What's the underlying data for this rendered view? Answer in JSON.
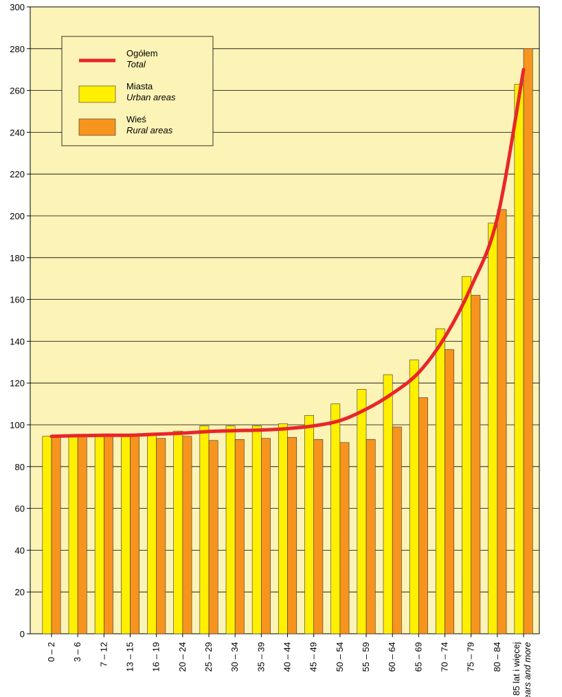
{
  "chart_data": {
    "type": "bar_line",
    "categories": [
      "0 – 2",
      "3 – 6",
      "7 – 12",
      "13 – 15",
      "16 – 19",
      "20 – 24",
      "25 – 29",
      "30 – 34",
      "35 – 39",
      "40 – 44",
      "45 – 49",
      "50 – 54",
      "55 – 59",
      "60 – 64",
      "65 – 69",
      "70 – 74",
      "75 – 79",
      "80 – 84",
      "85 lat i więcej"
    ],
    "last_category_en": "years and more",
    "series": [
      {
        "name": "Miasta",
        "name_en": "Urban areas",
        "kind": "bar",
        "color": "#ffef00",
        "values": [
          94.5,
          94.5,
          95,
          95,
          96,
          97,
          99.5,
          99.5,
          99.5,
          100.5,
          104.5,
          110,
          117,
          124,
          131,
          146,
          171,
          196.5,
          263
        ]
      },
      {
        "name": "Wieś",
        "name_en": "Rural areas",
        "kind": "bar",
        "color": "#f7941d",
        "values": [
          94,
          94.5,
          95,
          95,
          93.5,
          94.5,
          92.5,
          93,
          93.5,
          94,
          93,
          91.5,
          93,
          99,
          113,
          136,
          162,
          203,
          280
        ]
      },
      {
        "name": "Ogółem",
        "name_en": "Total",
        "kind": "line",
        "color": "#e8262a",
        "values": [
          94.5,
          94.8,
          95,
          95,
          95.5,
          96,
          96.8,
          97.2,
          97.5,
          98.2,
          99.5,
          102,
          107.5,
          115,
          125,
          142,
          166,
          199,
          270
        ]
      }
    ],
    "ylim": [
      0,
      300
    ],
    "yticks": [
      0,
      20,
      40,
      60,
      80,
      100,
      120,
      140,
      160,
      180,
      200,
      220,
      240,
      260,
      280,
      300
    ],
    "grid": true,
    "legend": "upper left",
    "background": "#fcf3b6"
  }
}
